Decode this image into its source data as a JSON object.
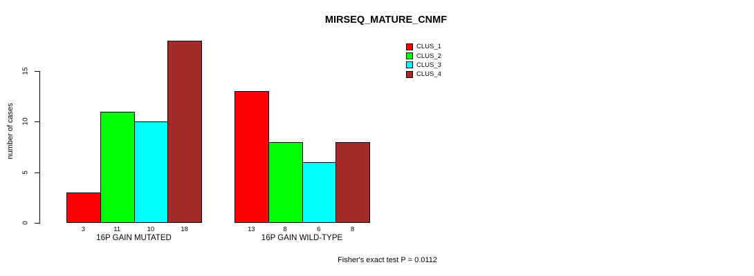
{
  "chart_data": {
    "type": "bar",
    "title": "MIRSEQ_MATURE_CNMF",
    "xlabel": "",
    "ylabel": "number of cases",
    "categories": [
      "16P GAIN MUTATED",
      "16P GAIN WILD-TYPE"
    ],
    "series": [
      {
        "name": "CLUS_1",
        "color": "#ff0000",
        "values": [
          3,
          13
        ]
      },
      {
        "name": "CLUS_2",
        "color": "#00ff00",
        "values": [
          11,
          8
        ]
      },
      {
        "name": "CLUS_3",
        "color": "#00ffff",
        "values": [
          10,
          6
        ]
      },
      {
        "name": "CLUS_4",
        "color": "#a52a2a",
        "values": [
          18,
          8
        ]
      }
    ],
    "yticks": [
      0,
      5,
      10,
      15
    ],
    "ylim": [
      0,
      15
    ],
    "grid": false,
    "show_bar_value_labels": true,
    "legend_position": "top-right",
    "annotation": "Fisher's exact test P = 0.0112"
  },
  "colors": {
    "background": "#ffffff",
    "axis": "#000000",
    "bar_border": "#000000",
    "text": "#000000"
  }
}
